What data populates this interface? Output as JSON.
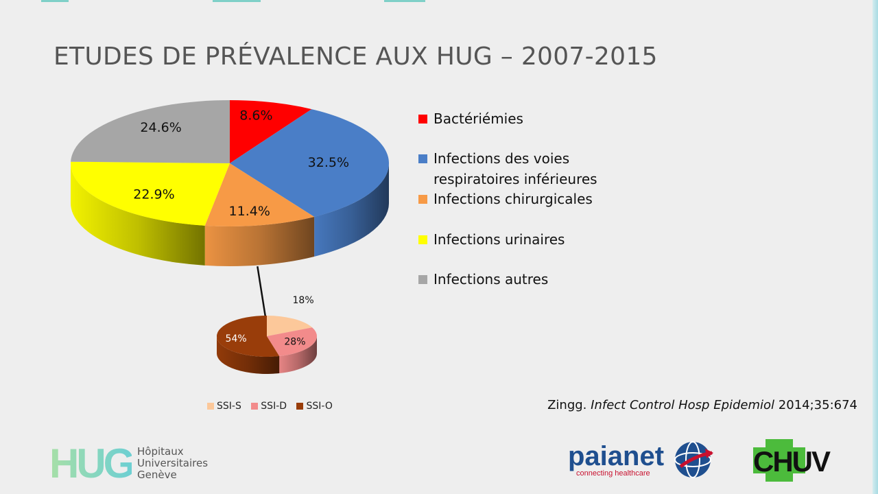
{
  "slide": {
    "title": "ETUDES DE PRÉVALENCE AUX HUG – 2007-2015"
  },
  "chart_data": [
    {
      "type": "pie",
      "title": "",
      "slices": [
        {
          "name": "Bactériémies",
          "value": 8.6,
          "label": "8.6%",
          "color": "#ff0000"
        },
        {
          "name": "Infections des voies respiratoires inférieures",
          "value": 32.5,
          "label": "32.5%",
          "color": "#4a7ec7"
        },
        {
          "name": "Infections chirurgicales",
          "value": 11.4,
          "label": "11.4%",
          "color": "#f79a46"
        },
        {
          "name": "Infections urinaires",
          "value": 22.9,
          "label": "22.9%",
          "color": "#ffff00"
        },
        {
          "name": "Infections autres",
          "value": 24.6,
          "label": "24.6%",
          "color": "#a6a6a6"
        }
      ],
      "legend": {
        "placement": "right",
        "items": [
          {
            "line1": "Bactériémies",
            "line2": "",
            "color": "#ff0000"
          },
          {
            "line1": "Infections des voies",
            "line2": "respiratoires inférieures",
            "color": "#4a7ec7"
          },
          {
            "line1": "Infections chirurgicales",
            "line2": "",
            "color": "#f79a46"
          },
          {
            "line1": "Infections urinaires",
            "line2": "",
            "color": "#ffff00"
          },
          {
            "line1": "Infections autres",
            "line2": "",
            "color": "#a6a6a6"
          }
        ]
      }
    },
    {
      "type": "pie",
      "title": "",
      "slices": [
        {
          "name": "SSI-S",
          "value": 18,
          "label": "18%",
          "color": "#fcc89a"
        },
        {
          "name": "SSI-D",
          "value": 28,
          "label": "28%",
          "color": "#f28b8b"
        },
        {
          "name": "SSI-O",
          "value": 54,
          "label": "54%",
          "color": "#993d0a"
        }
      ],
      "legend": {
        "placement": "bottom",
        "items": [
          {
            "label": "SSI-S",
            "color": "#fcc89a"
          },
          {
            "label": "SSI-D",
            "color": "#f28b8b"
          },
          {
            "label": "SSI-O",
            "color": "#993d0a"
          }
        ]
      }
    }
  ],
  "citation": {
    "author": "Zingg.",
    "journal": "Infect Control Hosp Epidemiol",
    "ref": "2014;35:674"
  },
  "logos": {
    "hug": {
      "mark": "HUG",
      "line1": "Hôpitaux",
      "line2": "Universitaires",
      "line3": "Genève"
    },
    "paianet": {
      "name": "paianet",
      "tagline": "connecting healthcare"
    },
    "chuv": {
      "name": "CHUV"
    }
  }
}
